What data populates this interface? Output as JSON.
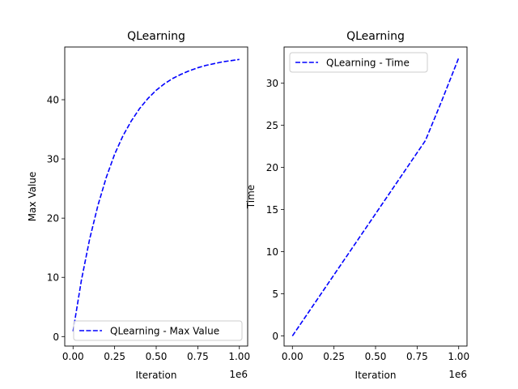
{
  "chart_data": [
    {
      "type": "line",
      "title": "QLearning",
      "xlabel": "Iteration",
      "ylabel": "Max Value",
      "x_offset_text": "1e6",
      "x_ticks": [
        0.0,
        0.25,
        0.5,
        0.75,
        1.0
      ],
      "x_tick_labels": [
        "0.00",
        "0.25",
        "0.50",
        "0.75",
        "1.00"
      ],
      "y_ticks": [
        0,
        10,
        20,
        30,
        40
      ],
      "y_tick_labels": [
        "0",
        "10",
        "20",
        "30",
        "40"
      ],
      "xlim": [
        -0.05,
        1.05
      ],
      "ylim": [
        -1.6,
        48.9
      ],
      "grid": false,
      "legend": "lower-right",
      "series": [
        {
          "name": "QLearning - Max Value",
          "color": "#0000ff",
          "linestyle": "dashed",
          "x": [
            0.0,
            0.05,
            0.1,
            0.15,
            0.2,
            0.25,
            0.3,
            0.35,
            0.4,
            0.45,
            0.5,
            0.55,
            0.6,
            0.65,
            0.7,
            0.75,
            0.8,
            0.85,
            0.9,
            0.95,
            1.0
          ],
          "y": [
            0.9,
            9.5,
            16.5,
            22.2,
            26.9,
            30.8,
            33.9,
            36.4,
            38.5,
            40.2,
            41.6,
            42.7,
            43.6,
            44.3,
            44.9,
            45.4,
            45.8,
            46.1,
            46.4,
            46.6,
            46.8
          ]
        }
      ]
    },
    {
      "type": "line",
      "title": "QLearning",
      "xlabel": "Iteration",
      "ylabel": "Time",
      "x_offset_text": "1e6",
      "x_ticks": [
        0.0,
        0.25,
        0.5,
        0.75,
        1.0
      ],
      "x_tick_labels": [
        "0.00",
        "0.25",
        "0.50",
        "0.75",
        "1.00"
      ],
      "y_ticks": [
        0,
        5,
        10,
        15,
        20,
        25,
        30
      ],
      "y_tick_labels": [
        "0",
        "5",
        "10",
        "15",
        "20",
        "25",
        "30"
      ],
      "xlim": [
        -0.05,
        1.05
      ],
      "ylim": [
        -1.2,
        34.3
      ],
      "grid": false,
      "legend": "upper-left",
      "series": [
        {
          "name": "QLearning - Time",
          "color": "#0000ff",
          "linestyle": "dashed",
          "x": [
            0.0,
            0.1,
            0.2,
            0.3,
            0.4,
            0.5,
            0.6,
            0.7,
            0.8,
            0.9,
            1.0
          ],
          "y": [
            0.0,
            2.9,
            5.8,
            8.7,
            11.6,
            14.5,
            17.4,
            20.3,
            23.2,
            28.0,
            33.0
          ]
        }
      ]
    }
  ]
}
